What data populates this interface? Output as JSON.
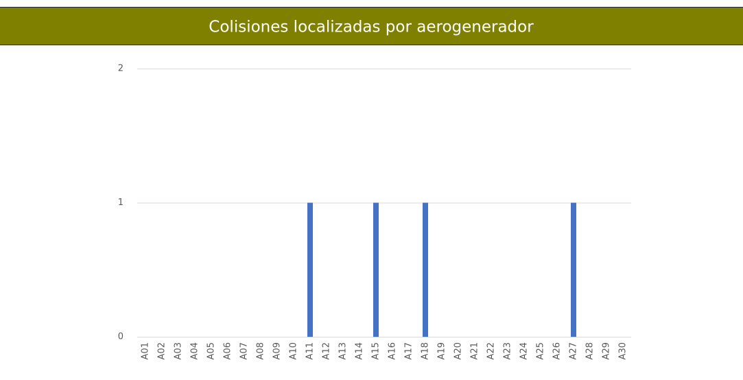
{
  "chart_data": {
    "type": "bar",
    "title": "Colisiones localizadas por aerogenerador",
    "categories": [
      "A01",
      "A02",
      "A03",
      "A04",
      "A05",
      "A06",
      "A07",
      "A08",
      "A09",
      "A10",
      "A11",
      "A12",
      "A13",
      "A14",
      "A15",
      "A16",
      "A17",
      "A18",
      "A19",
      "A20",
      "A21",
      "A22",
      "A23",
      "A24",
      "A25",
      "A26",
      "A27",
      "A28",
      "A29",
      "A30"
    ],
    "values": [
      0,
      0,
      0,
      0,
      0,
      0,
      0,
      0,
      0,
      0,
      1,
      0,
      0,
      0,
      1,
      0,
      0,
      1,
      0,
      0,
      0,
      0,
      0,
      0,
      0,
      0,
      1,
      0,
      0,
      0
    ],
    "color": "#4472c4",
    "ylim": [
      0,
      2
    ],
    "yticks": [
      0,
      1,
      2
    ],
    "grid": true
  }
}
